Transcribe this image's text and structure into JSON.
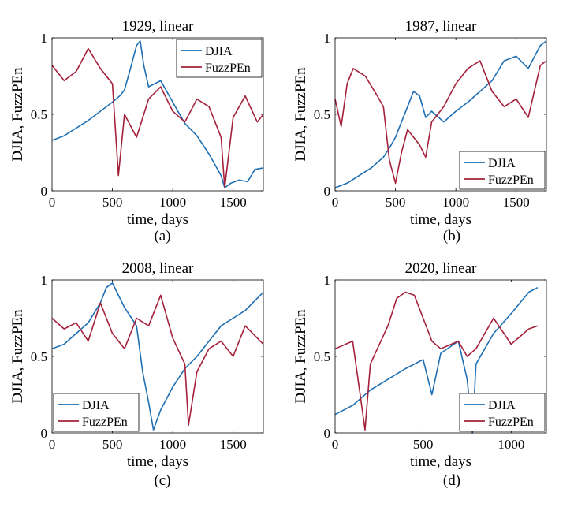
{
  "figure": {
    "panels": [
      {
        "title": "1929, linear",
        "xlabel": "time, days",
        "ylabel": "DJIA, FuzzPEn",
        "caption": "(a)"
      },
      {
        "title": "1987, linear",
        "xlabel": "time, days",
        "ylabel": "DJIA, FuzzPEn",
        "caption": "(b)"
      },
      {
        "title": "2008, linear",
        "xlabel": "time, days",
        "ylabel": "DJIA, FuzzPEn",
        "caption": "(c)"
      },
      {
        "title": "2020, linear",
        "xlabel": "time, days",
        "ylabel": "DJIA, FuzzPEn",
        "caption": "(d)"
      }
    ]
  },
  "chart_data": [
    {
      "type": "line",
      "title": "1929, linear",
      "xlabel": "time, days",
      "ylabel": "DJIA, FuzzPEn",
      "xlim": [
        0,
        1750
      ],
      "ylim": [
        0,
        1
      ],
      "xticks": [
        "0",
        "500",
        "1000",
        "1500"
      ],
      "yticks": [
        "0",
        "0.5",
        "1"
      ],
      "legend": "top-right",
      "series": [
        {
          "name": "DJIA",
          "color": "#1f6fb3",
          "x": [
            0,
            100,
            200,
            300,
            400,
            500,
            560,
            600,
            650,
            700,
            730,
            760,
            800,
            850,
            900,
            1000,
            1100,
            1200,
            1300,
            1400,
            1430,
            1480,
            1550,
            1620,
            1680,
            1750
          ],
          "y": [
            0.33,
            0.36,
            0.41,
            0.46,
            0.52,
            0.58,
            0.62,
            0.66,
            0.8,
            0.95,
            0.98,
            0.82,
            0.68,
            0.7,
            0.72,
            0.58,
            0.44,
            0.36,
            0.24,
            0.1,
            0.02,
            0.05,
            0.07,
            0.06,
            0.14,
            0.15
          ]
        },
        {
          "name": "FuzzPEn",
          "color": "#a5203a",
          "x": [
            0,
            100,
            200,
            300,
            400,
            500,
            550,
            600,
            700,
            800,
            900,
            1000,
            1100,
            1200,
            1300,
            1400,
            1430,
            1500,
            1600,
            1700,
            1750
          ],
          "y": [
            0.82,
            0.72,
            0.78,
            0.93,
            0.8,
            0.7,
            0.1,
            0.5,
            0.35,
            0.6,
            0.68,
            0.52,
            0.45,
            0.6,
            0.55,
            0.35,
            0.02,
            0.48,
            0.62,
            0.45,
            0.5
          ]
        }
      ]
    },
    {
      "type": "line",
      "title": "1987, linear",
      "xlabel": "time, days",
      "ylabel": "DJIA, FuzzPEn",
      "xlim": [
        0,
        1750
      ],
      "ylim": [
        0,
        1
      ],
      "xticks": [
        "0",
        "500",
        "1000",
        "1500"
      ],
      "yticks": [
        "0",
        "0.5",
        "1"
      ],
      "legend": "bottom-right",
      "series": [
        {
          "name": "DJIA",
          "color": "#1f6fb3",
          "x": [
            0,
            100,
            200,
            300,
            400,
            450,
            500,
            550,
            600,
            650,
            700,
            750,
            800,
            900,
            1000,
            1100,
            1200,
            1300,
            1400,
            1500,
            1600,
            1700,
            1750
          ],
          "y": [
            0.02,
            0.05,
            0.1,
            0.15,
            0.22,
            0.28,
            0.35,
            0.45,
            0.55,
            0.65,
            0.62,
            0.48,
            0.52,
            0.45,
            0.52,
            0.58,
            0.65,
            0.72,
            0.85,
            0.88,
            0.8,
            0.95,
            0.98
          ]
        },
        {
          "name": "FuzzPEn",
          "color": "#a5203a",
          "x": [
            0,
            50,
            100,
            150,
            250,
            350,
            400,
            450,
            500,
            550,
            600,
            700,
            750,
            800,
            900,
            1000,
            1100,
            1200,
            1300,
            1400,
            1500,
            1600,
            1700,
            1750
          ],
          "y": [
            0.6,
            0.42,
            0.7,
            0.8,
            0.75,
            0.62,
            0.55,
            0.2,
            0.05,
            0.25,
            0.4,
            0.3,
            0.22,
            0.45,
            0.55,
            0.7,
            0.8,
            0.85,
            0.65,
            0.55,
            0.6,
            0.48,
            0.82,
            0.85
          ]
        }
      ]
    },
    {
      "type": "line",
      "title": "2008, linear",
      "xlabel": "time, days",
      "ylabel": "DJIA, FuzzPEn",
      "xlim": [
        0,
        1750
      ],
      "ylim": [
        0,
        1
      ],
      "xticks": [
        "0",
        "500",
        "1000",
        "1500"
      ],
      "yticks": [
        "0",
        "0.5",
        "1"
      ],
      "legend": "bottom-left",
      "series": [
        {
          "name": "DJIA",
          "color": "#1f6fb3",
          "x": [
            0,
            100,
            200,
            300,
            400,
            450,
            500,
            550,
            600,
            700,
            750,
            800,
            840,
            900,
            1000,
            1100,
            1200,
            1300,
            1400,
            1500,
            1600,
            1700,
            1750
          ],
          "y": [
            0.55,
            0.58,
            0.65,
            0.72,
            0.85,
            0.95,
            0.98,
            0.9,
            0.82,
            0.7,
            0.4,
            0.2,
            0.02,
            0.15,
            0.3,
            0.42,
            0.5,
            0.6,
            0.7,
            0.75,
            0.8,
            0.88,
            0.92
          ]
        },
        {
          "name": "FuzzPEn",
          "color": "#a5203a",
          "x": [
            0,
            100,
            200,
            300,
            400,
            500,
            600,
            700,
            800,
            900,
            1000,
            1100,
            1130,
            1200,
            1300,
            1400,
            1500,
            1600,
            1700,
            1750
          ],
          "y": [
            0.75,
            0.68,
            0.72,
            0.6,
            0.85,
            0.65,
            0.55,
            0.75,
            0.7,
            0.9,
            0.62,
            0.45,
            0.05,
            0.4,
            0.55,
            0.6,
            0.5,
            0.7,
            0.62,
            0.58
          ]
        }
      ]
    },
    {
      "type": "line",
      "title": "2020, linear",
      "xlabel": "time, days",
      "ylabel": "DJIA, FuzzPEn",
      "xlim": [
        0,
        1200
      ],
      "ylim": [
        0,
        1
      ],
      "xticks": [
        "0",
        "500",
        "1000"
      ],
      "yticks": [
        "0",
        "0.5",
        "1"
      ],
      "legend": "bottom-right",
      "series": [
        {
          "name": "DJIA",
          "color": "#1f6fb3",
          "x": [
            0,
            100,
            200,
            300,
            400,
            500,
            550,
            600,
            700,
            750,
            780,
            800,
            850,
            900,
            1000,
            1100,
            1150
          ],
          "y": [
            0.12,
            0.18,
            0.28,
            0.35,
            0.42,
            0.48,
            0.25,
            0.52,
            0.6,
            0.35,
            0.0,
            0.45,
            0.55,
            0.65,
            0.78,
            0.92,
            0.95
          ]
        },
        {
          "name": "FuzzPEn",
          "color": "#a5203a",
          "x": [
            0,
            100,
            170,
            200,
            300,
            350,
            400,
            450,
            500,
            550,
            600,
            700,
            750,
            800,
            900,
            1000,
            1100,
            1150
          ],
          "y": [
            0.55,
            0.6,
            0.02,
            0.45,
            0.7,
            0.88,
            0.92,
            0.9,
            0.75,
            0.6,
            0.55,
            0.6,
            0.5,
            0.55,
            0.75,
            0.58,
            0.68,
            0.7
          ]
        }
      ]
    }
  ]
}
